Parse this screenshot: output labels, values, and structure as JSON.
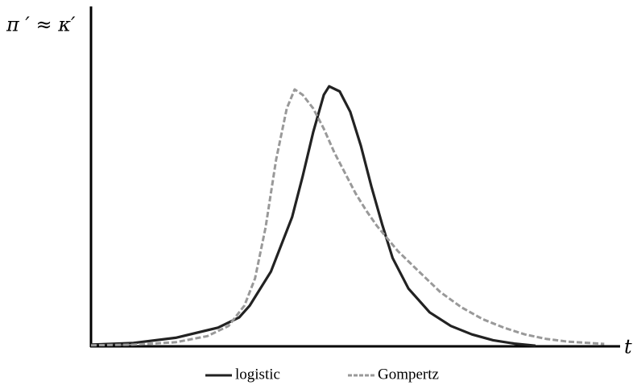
{
  "chart_data": {
    "type": "line",
    "y_label": "π ′ ≈ κ′",
    "x_label": "t",
    "xlim": [
      0,
      100
    ],
    "ylim": [
      0,
      100
    ],
    "legend": "bottom",
    "series": [
      {
        "name": "logistic",
        "color": "#222222",
        "dash": false,
        "x": [
          0,
          8,
          16,
          24,
          28,
          30,
          34,
          38,
          40,
          42,
          44,
          45,
          47,
          49,
          51,
          53,
          55,
          57,
          60,
          64,
          68,
          72,
          76,
          80,
          84
        ],
        "values": [
          0.5,
          1,
          2.5,
          5.5,
          8.5,
          12,
          22,
          38,
          50,
          63,
          74,
          76.5,
          75,
          69,
          59,
          47,
          36,
          26,
          17,
          10,
          6,
          3.5,
          1.8,
          0.8,
          0.2
        ]
      },
      {
        "name": "Gompertz",
        "color": "#999999",
        "dash": true,
        "x": [
          0,
          8,
          16,
          22,
          26,
          29,
          31,
          33,
          35,
          37,
          38.5,
          40,
          42,
          44,
          46,
          48,
          50,
          52,
          54,
          58,
          62,
          66,
          70,
          74,
          78,
          82,
          86,
          90,
          97
        ],
        "values": [
          0.3,
          0.5,
          1.2,
          3,
          6,
          12,
          20,
          35,
          55,
          70,
          75.6,
          74,
          70,
          64,
          57,
          51,
          45,
          40,
          35.5,
          28,
          22,
          16,
          11.5,
          8,
          5.5,
          3.5,
          2.2,
          1.4,
          0.7
        ]
      }
    ]
  }
}
